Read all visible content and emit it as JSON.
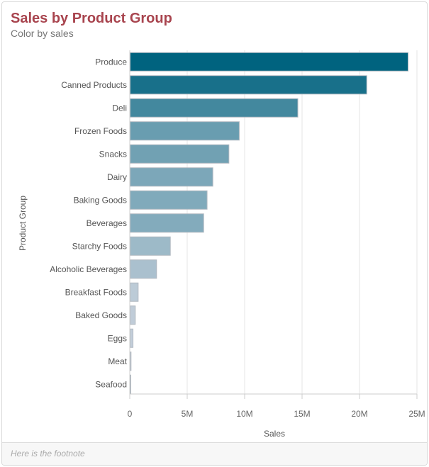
{
  "header": {
    "title": "Sales by Product Group",
    "subtitle": "Color by sales"
  },
  "footer": {
    "footnote": "Here is the footnote"
  },
  "colors": {
    "max": "#00637f",
    "min": "#c8d1dc",
    "title": "#a8444e"
  },
  "chart_data": {
    "type": "bar",
    "orientation": "horizontal",
    "title": "Sales by Product Group",
    "subtitle": "Color by sales",
    "xlabel": "Sales",
    "ylabel": "Product Group",
    "xlim": [
      0,
      25000000
    ],
    "xticks": [
      {
        "value": 0,
        "label": "0"
      },
      {
        "value": 5000000,
        "label": "5M"
      },
      {
        "value": 10000000,
        "label": "10M"
      },
      {
        "value": 15000000,
        "label": "15M"
      },
      {
        "value": 20000000,
        "label": "20M"
      },
      {
        "value": 25000000,
        "label": "25M"
      }
    ],
    "grid": true,
    "categories": [
      "Produce",
      "Canned Products",
      "Deli",
      "Frozen Foods",
      "Snacks",
      "Dairy",
      "Baking Goods",
      "Beverages",
      "Starchy Foods",
      "Alcoholic Beverages",
      "Breakfast Foods",
      "Baked Goods",
      "Eggs",
      "Meat",
      "Seafood"
    ],
    "values": [
      24200000,
      20600000,
      14600000,
      9500000,
      8600000,
      7200000,
      6700000,
      6400000,
      3500000,
      2300000,
      700000,
      450000,
      250000,
      80000,
      40000
    ]
  }
}
